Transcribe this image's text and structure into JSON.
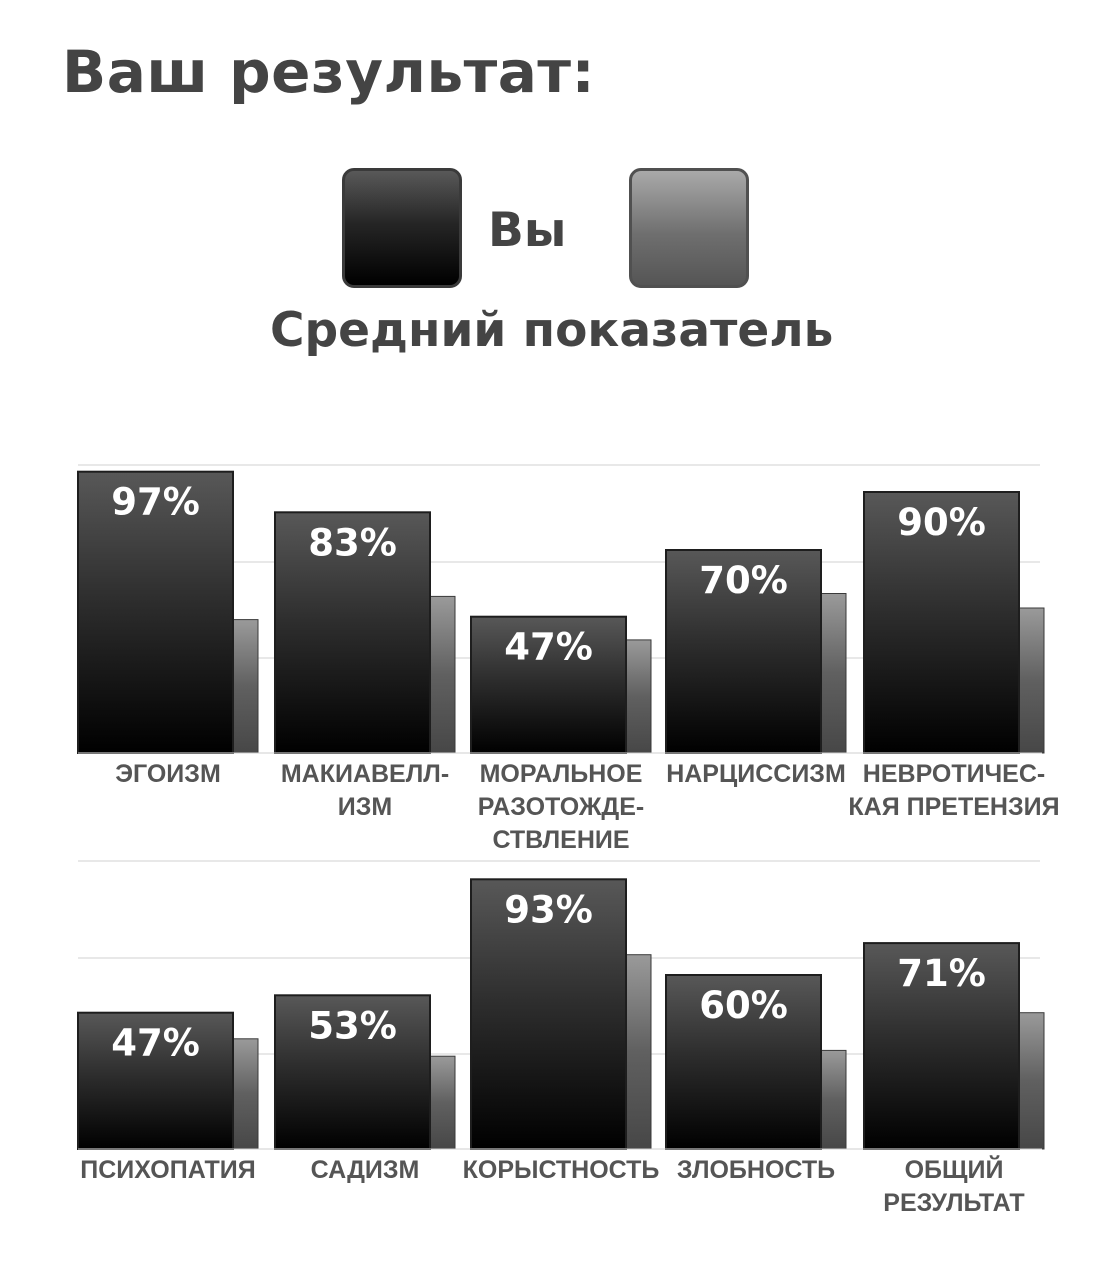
{
  "title": "Ваш результат:",
  "legend": {
    "you": "Вы",
    "average": "Средний показатель"
  },
  "colors": {
    "you_top": "#585858",
    "you_bottom": "#000000",
    "avg_top": "#a0a0a0",
    "avg_bottom": "#4a4a4a",
    "text": "#444444",
    "grid": "#e8e8e8"
  },
  "chart_data": [
    {
      "type": "bar",
      "title": "",
      "ylim": [
        0,
        100
      ],
      "grid": true,
      "legend_placement": "top",
      "categories": [
        [
          "ЭГОИЗМ"
        ],
        [
          "МАКИАВЕЛЛ-",
          "ИЗМ"
        ],
        [
          "МОРАЛЬНОЕ",
          "РАЗОТОЖДЕ-",
          "СТВЛЕНИЕ"
        ],
        [
          "НАРЦИССИЗМ"
        ],
        [
          "НЕВРОТИЧЕС-",
          "КАЯ ПРЕТЕНЗИЯ"
        ]
      ],
      "series": [
        {
          "name": "Вы",
          "values": [
            97,
            83,
            47,
            70,
            90
          ],
          "labels": [
            "97%",
            "83%",
            "47%",
            "70%",
            "90%"
          ]
        },
        {
          "name": "Средний показатель",
          "values": [
            46,
            54,
            39,
            55,
            50
          ]
        }
      ]
    },
    {
      "type": "bar",
      "title": "",
      "ylim": [
        0,
        100
      ],
      "grid": true,
      "legend_placement": "top",
      "categories": [
        [
          "ПСИХОПАТИЯ"
        ],
        [
          "САДИЗМ"
        ],
        [
          "КОРЫСТНОСТЬ"
        ],
        [
          "ЗЛОБНОСТЬ"
        ],
        [
          "ОБЩИЙ",
          "РЕЗУЛЬТАТ"
        ]
      ],
      "series": [
        {
          "name": "Вы",
          "values": [
            47,
            53,
            93,
            60,
            71
          ],
          "labels": [
            "47%",
            "53%",
            "93%",
            "60%",
            "71%"
          ]
        },
        {
          "name": "Средний показатель",
          "values": [
            38,
            32,
            67,
            34,
            47
          ]
        }
      ]
    }
  ]
}
